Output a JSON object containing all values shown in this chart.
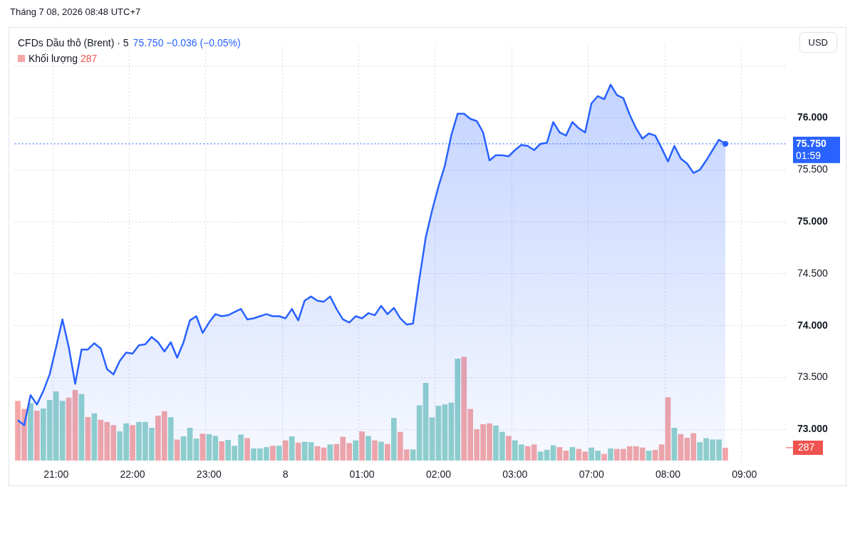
{
  "chart_data": {
    "type": "area",
    "title": "CFDs Dầu thô (Brent) · 5",
    "subtitle": "75.750 −0.036 (−0.05%)",
    "ylabel": "USD",
    "annotations": [
      "Tháng 7 08, 2026 08:48 UTC+7",
      "01:59"
    ],
    "categories": [
      null,
      null,
      null,
      null,
      null,
      null,
      "21:00",
      null,
      null,
      null,
      null,
      null,
      null,
      null,
      null,
      null,
      null,
      null,
      "22:00",
      null,
      null,
      null,
      null,
      null,
      null,
      null,
      null,
      null,
      null,
      null,
      "23:00",
      null,
      null,
      null,
      null,
      null,
      null,
      null,
      null,
      null,
      null,
      null,
      "8",
      null,
      null,
      null,
      null,
      null,
      null,
      null,
      null,
      null,
      null,
      null,
      "01:00",
      null,
      null,
      null,
      null,
      null,
      null,
      null,
      null,
      null,
      null,
      null,
      "02:00",
      null,
      null,
      null,
      null,
      null,
      null,
      null,
      null,
      null,
      null,
      null,
      "03:00",
      null,
      null,
      null,
      null,
      null,
      null,
      null,
      null,
      null,
      null,
      null,
      "07:00",
      null,
      null,
      null,
      null,
      null,
      null,
      null,
      null,
      null,
      null,
      null,
      "08:00",
      null,
      null,
      null,
      null,
      null,
      null,
      null,
      null,
      null,
      null,
      null,
      "09:00",
      null,
      null,
      null,
      null,
      null,
      null
    ],
    "series": [
      {
        "color": "#2962ff",
        "values": [
          73.09,
          73.04,
          73.33,
          73.24,
          73.37,
          73.53,
          73.79,
          74.06,
          73.79,
          73.44,
          73.77,
          73.77,
          73.83,
          73.78,
          73.58,
          73.53,
          73.66,
          73.74,
          73.73,
          73.81,
          73.82,
          73.89,
          73.84,
          73.75,
          73.84,
          73.69,
          73.84,
          74.05,
          74.09,
          73.93,
          74.03,
          74.11,
          74.09,
          74.1,
          74.13,
          74.16,
          74.06,
          74.07,
          74.09,
          74.11,
          74.09,
          74.09,
          74.07,
          74.16,
          74.05,
          74.24,
          74.28,
          74.24,
          74.23,
          74.28,
          74.16,
          74.06,
          74.03,
          74.09,
          74.07,
          74.12,
          74.1,
          74.19,
          74.11,
          74.17,
          74.07,
          74.01,
          74.02,
          74.45,
          74.85,
          75.11,
          75.34,
          75.54,
          75.83,
          76.04,
          76.04,
          75.99,
          75.97,
          75.86,
          75.59,
          75.64,
          75.64,
          75.63,
          75.69,
          75.74,
          75.73,
          75.69,
          75.75,
          75.76,
          75.96,
          75.86,
          75.83,
          75.96,
          75.9,
          75.86,
          76.14,
          76.21,
          76.18,
          76.32,
          76.22,
          76.19,
          76.03,
          75.9,
          75.8,
          75.85,
          75.83,
          75.71,
          75.58,
          75.73,
          75.61,
          75.56,
          75.47,
          75.5,
          75.59,
          75.69,
          75.79,
          75.75,
          null,
          null,
          null,
          null,
          null,
          null,
          null,
          null,
          null
        ]
      },
      {
        "type": "bar",
        "name": "Khối lượng",
        "axis": "y2",
        "values": [
          1330,
          1150,
          1280,
          1110,
          1160,
          1350,
          1540,
          1330,
          1400,
          1570,
          1480,
          970,
          1050,
          910,
          860,
          790,
          650,
          830,
          790,
          860,
          860,
          730,
          1000,
          1100,
          970,
          470,
          540,
          730,
          490,
          600,
          590,
          550,
          430,
          460,
          330,
          580,
          500,
          270,
          270,
          300,
          330,
          330,
          450,
          540,
          400,
          420,
          410,
          320,
          290,
          360,
          370,
          530,
          390,
          450,
          650,
          550,
          450,
          420,
          370,
          950,
          640,
          250,
          250,
          1230,
          1730,
          960,
          1220,
          1250,
          1290,
          2270,
          2310,
          1150,
          700,
          810,
          830,
          780,
          640,
          550,
          450,
          360,
          320,
          360,
          200,
          240,
          340,
          300,
          220,
          300,
          260,
          200,
          290,
          220,
          150,
          270,
          260,
          260,
          320,
          320,
          290,
          220,
          240,
          360,
          1410,
          730,
          590,
          510,
          610,
          410,
          500,
          470,
          470,
          287,
          null,
          null,
          null,
          null,
          null,
          null,
          null,
          null,
          null
        ],
        "colors": [
          "#f5a7a7",
          "#f5a7a7",
          "#92d2cc",
          "#f5a7a7",
          "#92d2cc",
          "#92d2cc",
          "#92d2cc",
          "#92d2cc",
          "#f5a7a7",
          "#f5a7a7",
          "#92d2cc",
          "#f5a7a7",
          "#92d2cc",
          "#f5a7a7",
          "#f5a7a7",
          "#f5a7a7",
          "#92d2cc",
          "#92d2cc",
          "#f5a7a7",
          "#92d2cc",
          "#92d2cc",
          "#92d2cc",
          "#f5a7a7",
          "#f5a7a7",
          "#92d2cc",
          "#f5a7a7",
          "#92d2cc",
          "#92d2cc",
          "#92d2cc",
          "#f5a7a7",
          "#92d2cc",
          "#92d2cc",
          "#f5a7a7",
          "#92d2cc",
          "#92d2cc",
          "#92d2cc",
          "#f5a7a7",
          "#92d2cc",
          "#92d2cc",
          "#92d2cc",
          "#f5a7a7",
          "#92d2cc",
          "#f5a7a7",
          "#92d2cc",
          "#f5a7a7",
          "#92d2cc",
          "#92d2cc",
          "#f5a7a7",
          "#f5a7a7",
          "#92d2cc",
          "#f5a7a7",
          "#f5a7a7",
          "#f5a7a7",
          "#92d2cc",
          "#f5a7a7",
          "#92d2cc",
          "#f5a7a7",
          "#92d2cc",
          "#f5a7a7",
          "#92d2cc",
          "#f5a7a7",
          "#f5a7a7",
          "#92d2cc",
          "#92d2cc",
          "#92d2cc",
          "#92d2cc",
          "#92d2cc",
          "#92d2cc",
          "#92d2cc",
          "#92d2cc",
          "#f5a7a7",
          "#f5a7a7",
          "#f5a7a7",
          "#f5a7a7",
          "#f5a7a7",
          "#92d2cc",
          "#92d2cc",
          "#f5a7a7",
          "#92d2cc",
          "#92d2cc",
          "#f5a7a7",
          "#f5a7a7",
          "#92d2cc",
          "#92d2cc",
          "#92d2cc",
          "#f5a7a7",
          "#f5a7a7",
          "#92d2cc",
          "#f5a7a7",
          "#f5a7a7",
          "#92d2cc",
          "#92d2cc",
          "#f5a7a7",
          "#92d2cc",
          "#f5a7a7",
          "#f5a7a7",
          "#f5a7a7",
          "#f5a7a7",
          "#f5a7a7",
          "#92d2cc",
          "#f5a7a7",
          "#f5a7a7",
          "#f5a7a7",
          "#92d2cc",
          "#f5a7a7",
          "#f5a7a7",
          "#f5a7a7",
          "#92d2cc",
          "#92d2cc",
          "#92d2cc",
          "#92d2cc",
          "#f5a7a7",
          null,
          null,
          null,
          null,
          null,
          null,
          null,
          null,
          null
        ]
      }
    ],
    "ylim": [
      72.7,
      76.7
    ],
    "yticks": [
      {
        "value": 73,
        "label": "73.000"
      },
      {
        "value": 73.5,
        "label": "73.500"
      },
      {
        "value": 74,
        "label": "74.000"
      },
      {
        "value": 74.5,
        "label": "74.500"
      },
      {
        "value": 75,
        "label": "75.000"
      },
      {
        "value": 75.5,
        "label": "75.500"
      },
      {
        "value": 76,
        "label": "76.000"
      },
      {
        "value": 76.5,
        "label": null
      }
    ],
    "y2lim": [
      0,
      9250
    ],
    "y2ticks": [
      {
        "value": 287,
        "label": "287"
      }
    ],
    "ref_lines": [
      {
        "axis": "y",
        "value": 75.75,
        "label": "75.750",
        "color": "#2962ff",
        "line_style": "dotted"
      }
    ],
    "grid": true,
    "legend": "top left"
  }
}
